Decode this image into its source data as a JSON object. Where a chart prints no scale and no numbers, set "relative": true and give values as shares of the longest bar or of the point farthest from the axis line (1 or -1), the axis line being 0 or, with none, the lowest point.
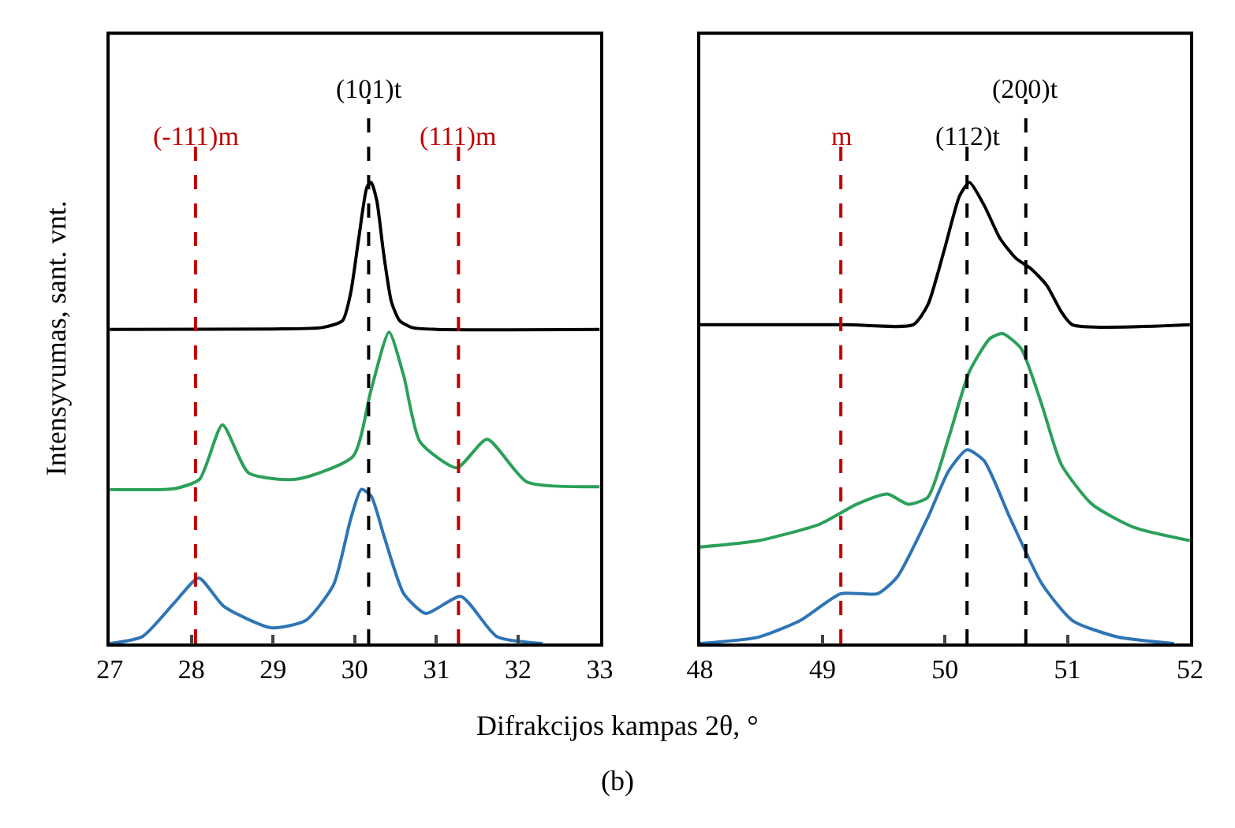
{
  "chart_data": [
    {
      "type": "line",
      "relative": true,
      "xlabel": "Difrakcijos kampas 2θ, °",
      "ylabel": "Intensyvumas, sant. vnt.",
      "annotations": [
        "(b)"
      ],
      "xlim": [
        27,
        33
      ],
      "xticks": [
        27,
        28,
        29,
        30,
        31,
        32,
        33
      ],
      "tick_labels": "x",
      "marker": "none",
      "line_style": "solid",
      "series": [
        {
          "color": "#000000",
          "x": [
            27,
            29,
            29.6,
            29.85,
            29.95,
            30.05,
            30.15,
            30.2,
            30.27,
            30.35,
            30.45,
            30.55,
            30.7,
            31,
            33
          ],
          "values": [
            0.681,
            0.682,
            0.685,
            0.7,
            0.76,
            0.88,
            0.99,
            1.0,
            0.96,
            0.85,
            0.74,
            0.7,
            0.685,
            0.681,
            0.681
          ]
        },
        {
          "color": "#2ca05a",
          "x": [
            27,
            27.8,
            28.1,
            28.38,
            28.7,
            29.28,
            29.98,
            30.2,
            30.42,
            30.6,
            30.8,
            31.25,
            31.62,
            32.11,
            33
          ],
          "values": [
            0.334,
            0.336,
            0.356,
            0.474,
            0.37,
            0.356,
            0.406,
            0.55,
            0.675,
            0.58,
            0.437,
            0.381,
            0.443,
            0.35,
            0.34
          ]
        },
        {
          "color": "#2e75b6",
          "x": [
            27,
            27.4,
            27.8,
            28.09,
            28.4,
            28.98,
            29.4,
            29.74,
            29.95,
            30.08,
            30.2,
            30.36,
            30.6,
            30.87,
            31.3,
            31.74,
            32.3
          ],
          "values": [
            0,
            0.015,
            0.09,
            0.142,
            0.08,
            0.034,
            0.05,
            0.127,
            0.27,
            0.334,
            0.32,
            0.232,
            0.108,
            0.065,
            0.102,
            0.015,
            0
          ]
        }
      ],
      "ref_lines": [
        {
          "axis": "x",
          "value": 28.05,
          "label": "(-111)m",
          "color": "#c00000",
          "line_style": "dashed"
        },
        {
          "axis": "x",
          "value": 30.17,
          "label": "(101)t",
          "color": "#000000",
          "line_style": "dashed"
        },
        {
          "axis": "x",
          "value": 31.27,
          "label": "(111)m",
          "color": "#c00000",
          "line_style": "dashed"
        }
      ]
    },
    {
      "type": "line",
      "relative": true,
      "xlim": [
        48,
        52
      ],
      "xticks": [
        48,
        49,
        50,
        51,
        52
      ],
      "tick_labels": "x",
      "marker": "none",
      "line_style": "solid",
      "series": [
        {
          "color": "#000000",
          "x": [
            48,
            49.2,
            49.74,
            49.86,
            49.99,
            50.12,
            50.2,
            50.32,
            50.45,
            50.58,
            50.7,
            50.83,
            50.95,
            51.04,
            52
          ],
          "values": [
            0.691,
            0.691,
            0.691,
            0.734,
            0.849,
            0.971,
            1.0,
            0.95,
            0.878,
            0.835,
            0.813,
            0.777,
            0.719,
            0.691,
            0.691
          ]
        },
        {
          "color": "#2ca05a",
          "x": [
            48,
            48.48,
            48.98,
            49.28,
            49.53,
            49.7,
            49.86,
            50.03,
            50.2,
            50.37,
            50.47,
            50.62,
            50.79,
            50.95,
            51.2,
            51.54,
            52
          ],
          "values": [
            0.209,
            0.223,
            0.259,
            0.302,
            0.324,
            0.302,
            0.317,
            0.446,
            0.59,
            0.662,
            0.672,
            0.64,
            0.518,
            0.388,
            0.302,
            0.252,
            0.223
          ]
        },
        {
          "color": "#2e75b6",
          "x": [
            48,
            48.48,
            48.82,
            49.15,
            49.45,
            49.61,
            49.86,
            50.03,
            50.18,
            50.32,
            50.53,
            50.79,
            51.04,
            51.41,
            51.87
          ],
          "values": [
            0,
            0.014,
            0.05,
            0.108,
            0.108,
            0.144,
            0.273,
            0.374,
            0.42,
            0.396,
            0.273,
            0.13,
            0.05,
            0.014,
            0
          ]
        }
      ],
      "ref_lines": [
        {
          "axis": "x",
          "value": 49.15,
          "label": "m",
          "color": "#c00000",
          "line_style": "dashed"
        },
        {
          "axis": "x",
          "value": 50.66,
          "label": "(200)t",
          "color": "#000000",
          "line_style": "dashed"
        },
        {
          "axis": "x",
          "value": 50.18,
          "label": "(112)t",
          "color": "#000000",
          "line_style": "dashed"
        }
      ]
    }
  ]
}
